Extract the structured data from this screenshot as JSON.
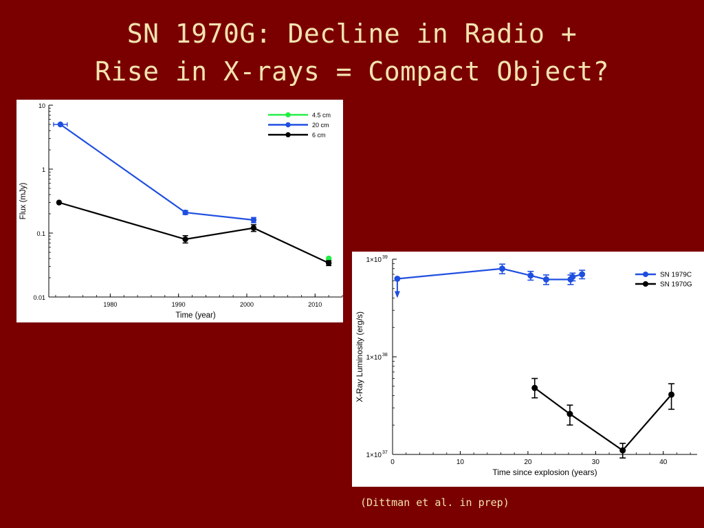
{
  "slide": {
    "title_line1": "SN 1970G: Decline in Radio +",
    "title_line2": "Rise in X-rays = Compact Object?",
    "citation": "(Dittman et al. in prep)"
  },
  "chart_data": [
    {
      "type": "line",
      "id": "radio",
      "title": "",
      "xlabel": "Time (year)",
      "ylabel": "Flux (mJy)",
      "yscale": "log",
      "xlim": [
        1971,
        2014
      ],
      "ylim": [
        0.01,
        10
      ],
      "xticks": [
        1980,
        1990,
        2000,
        2010
      ],
      "xtick_labels": [
        "1980",
        "1990",
        "2000",
        "2010"
      ],
      "yticks": [
        0.01,
        0.1,
        1,
        10
      ],
      "ytick_labels": [
        "0.01",
        "0.1",
        "1",
        "10"
      ],
      "grid": false,
      "legend": "top-right",
      "series": [
        {
          "name": "4.5 cm",
          "color": "#22ee44",
          "x": [
            2012
          ],
          "y": [
            0.04
          ],
          "yerr_lo": [
            0.04
          ],
          "yerr_hi": [
            0.04
          ],
          "xerr": [
            0
          ]
        },
        {
          "name": "20 cm",
          "color": "#1f4fe0",
          "x": [
            1972.7,
            1991,
            2001
          ],
          "y": [
            5.0,
            0.21,
            0.16
          ],
          "yerr_lo": [
            5.0,
            0.195,
            0.145
          ],
          "yerr_hi": [
            5.0,
            0.225,
            0.175
          ],
          "xerr": [
            1.0,
            0,
            0
          ]
        },
        {
          "name": "6 cm",
          "color": "#000000",
          "x": [
            1972.5,
            1991,
            2001,
            2012
          ],
          "y": [
            0.3,
            0.08,
            0.12,
            0.034
          ],
          "yerr_lo": [
            0.3,
            0.07,
            0.106,
            0.031
          ],
          "yerr_hi": [
            0.3,
            0.091,
            0.135,
            0.037
          ],
          "xerr": [
            0,
            0,
            0,
            0
          ]
        }
      ]
    },
    {
      "type": "line",
      "id": "xray",
      "title": "",
      "xlabel": "Time since explosion (years)",
      "ylabel": "X-Ray Luminosity (erg/s)",
      "yscale": "log",
      "xlim": [
        0,
        45
      ],
      "ylim": [
        1e+37,
        1e+39
      ],
      "xticks": [
        0,
        10,
        20,
        30,
        40
      ],
      "xtick_labels": [
        "0",
        "10",
        "20",
        "30",
        "40"
      ],
      "yticks": [
        1e+37,
        1e+38,
        1e+39
      ],
      "ytick_labels": [
        "1×10",
        "1×10",
        "1×10"
      ],
      "ytick_exponents": [
        "37",
        "38",
        "39"
      ],
      "grid": false,
      "legend": "top-right",
      "series": [
        {
          "name": "SN 1979C",
          "color": "#1f4fe0",
          "x": [
            0.7,
            16.2,
            20.4,
            22.7,
            26.3,
            26.6,
            28
          ],
          "y": [
            6.3e+38,
            8e+38,
            6.8e+38,
            6.2e+38,
            6.2e+38,
            6.6e+38,
            7e+38
          ],
          "yerr_lo": [
            6.3e+38,
            7.1e+38,
            6.1e+38,
            5.5e+38,
            5.5e+38,
            6e+38,
            6.3e+38
          ],
          "yerr_hi": [
            6.3e+38,
            8.9e+38,
            7.5e+38,
            6.9e+38,
            6.9e+38,
            7.2e+38,
            7.7e+38
          ],
          "upper_limit": [
            true,
            false,
            false,
            false,
            false,
            false,
            false
          ]
        },
        {
          "name": "SN 1970G",
          "color": "#000000",
          "x": [
            21,
            26.2,
            34,
            41.2
          ],
          "y": [
            4.8e+37,
            2.6e+37,
            1.1e+37,
            4.1e+37
          ],
          "yerr_lo": [
            3.8e+37,
            2e+37,
            9.2e+36,
            2.9e+37
          ],
          "yerr_hi": [
            6e+37,
            3.2e+37,
            1.3e+37,
            5.3e+37
          ],
          "upper_limit": [
            false,
            false,
            false,
            false
          ]
        }
      ]
    }
  ]
}
